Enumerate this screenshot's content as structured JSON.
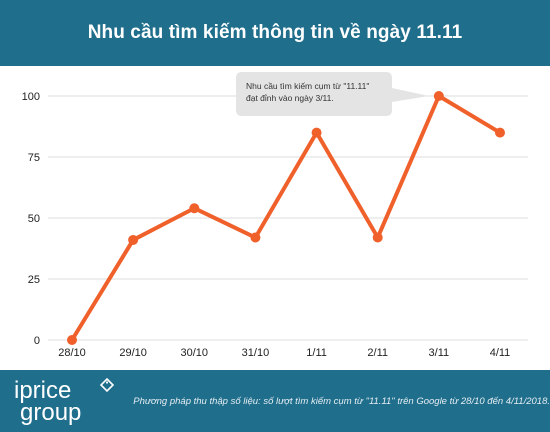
{
  "header": {
    "title": "Nhu cầu tìm kiếm thông tin về ngày 11.11"
  },
  "chart_data": {
    "type": "line",
    "title": "Nhu cầu tìm kiếm thông tin về ngày 11.11",
    "categories": [
      "28/10",
      "29/10",
      "30/10",
      "31/10",
      "1/11",
      "2/11",
      "3/11",
      "4/11"
    ],
    "series": [
      {
        "values": [
          0,
          41,
          54,
          42,
          85,
          42,
          100,
          85
        ]
      }
    ],
    "ylim": [
      0,
      100
    ],
    "yticks": [
      0,
      25,
      50,
      75,
      100
    ],
    "grid": "horizontal",
    "line_color": "#f0602a",
    "annotation": {
      "lines": [
        "Nhu cầu tìm kiếm cụm từ \"11.11\"",
        "đạt đỉnh vào ngày 3/11."
      ],
      "target_category": "3/11"
    }
  },
  "footer": {
    "logo_line1": "iprice",
    "logo_line2": "group",
    "methodology": "Phương pháp thu thập số liệu: số lượt tìm kiếm cụm từ \"11.11\" trên Google từ 28/10 đến 4/11/2018."
  },
  "colors": {
    "brand": "#1f6e8c",
    "line": "#f0602a",
    "grid": "#dddddd",
    "callout_bg": "#e4e4e4"
  }
}
